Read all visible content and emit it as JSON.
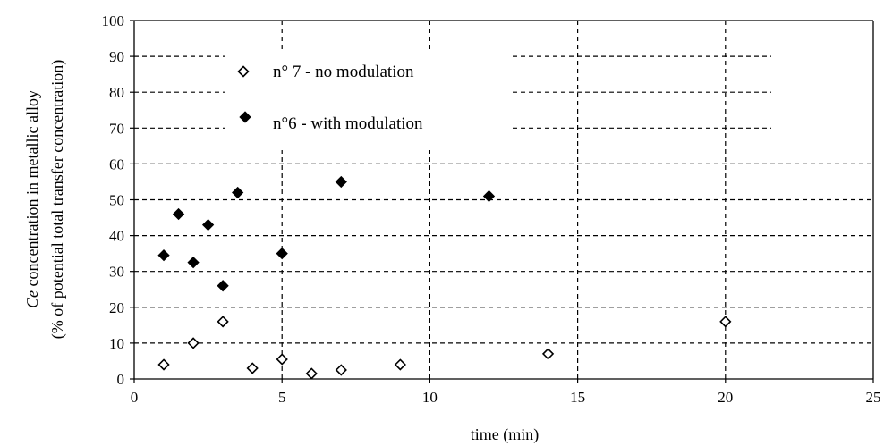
{
  "chart_data": {
    "type": "scatter",
    "title": "",
    "xlabel": "time (min)",
    "ylabel_italic": "Ce",
    "ylabel_rest": " concentration in metallic alloy",
    "ylabel_line2": "(% of potential total transfer concentration)",
    "xlim": [
      0,
      25
    ],
    "ylim": [
      0,
      100
    ],
    "x_ticks": [
      "0",
      "5",
      "10",
      "15",
      "20",
      "25"
    ],
    "y_ticks": [
      "0",
      "10",
      "20",
      "30",
      "40",
      "50",
      "60",
      "70",
      "80",
      "90",
      "100"
    ],
    "grid": "dashed, horizontal every 10 and vertical every 5",
    "legend_position": "top-left",
    "series": [
      {
        "name": "n° 7 - no modulation",
        "marker": "open-diamond",
        "color": "#000000",
        "points": [
          {
            "x": 1,
            "y": 4
          },
          {
            "x": 2,
            "y": 10
          },
          {
            "x": 3,
            "y": 16
          },
          {
            "x": 4,
            "y": 3
          },
          {
            "x": 5,
            "y": 5.5
          },
          {
            "x": 6,
            "y": 1.5
          },
          {
            "x": 7,
            "y": 2.5
          },
          {
            "x": 9,
            "y": 4
          },
          {
            "x": 14,
            "y": 7
          },
          {
            "x": 20,
            "y": 16
          }
        ]
      },
      {
        "name": "n°6 - with modulation",
        "marker": "filled-diamond",
        "color": "#000000",
        "points": [
          {
            "x": 1,
            "y": 34.5
          },
          {
            "x": 1.5,
            "y": 46
          },
          {
            "x": 2,
            "y": 32.5
          },
          {
            "x": 2.5,
            "y": 43
          },
          {
            "x": 3,
            "y": 26
          },
          {
            "x": 3.5,
            "y": 52
          },
          {
            "x": 5,
            "y": 35
          },
          {
            "x": 7,
            "y": 55
          },
          {
            "x": 12,
            "y": 51
          }
        ]
      }
    ]
  }
}
